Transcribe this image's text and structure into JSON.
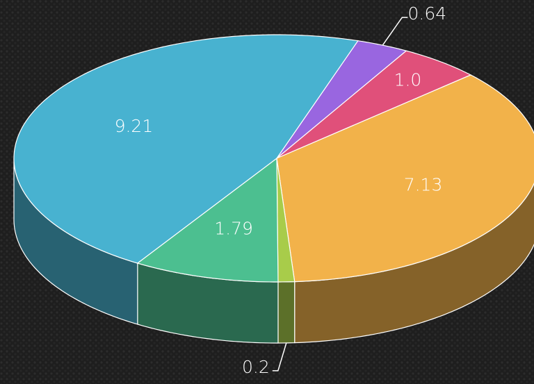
{
  "chart_data": {
    "type": "pie3d",
    "values": [
      0.64,
      1.0,
      7.13,
      0.2,
      1.79,
      9.21
    ],
    "value_labels": [
      "0.64",
      "1.0",
      "7.13",
      "0.2",
      "1.79",
      "9.21"
    ],
    "colors": [
      "#9966e0",
      "#e0507a",
      "#f2b24a",
      "#a8cc4a",
      "#4cbf90",
      "#48b2d0"
    ]
  }
}
